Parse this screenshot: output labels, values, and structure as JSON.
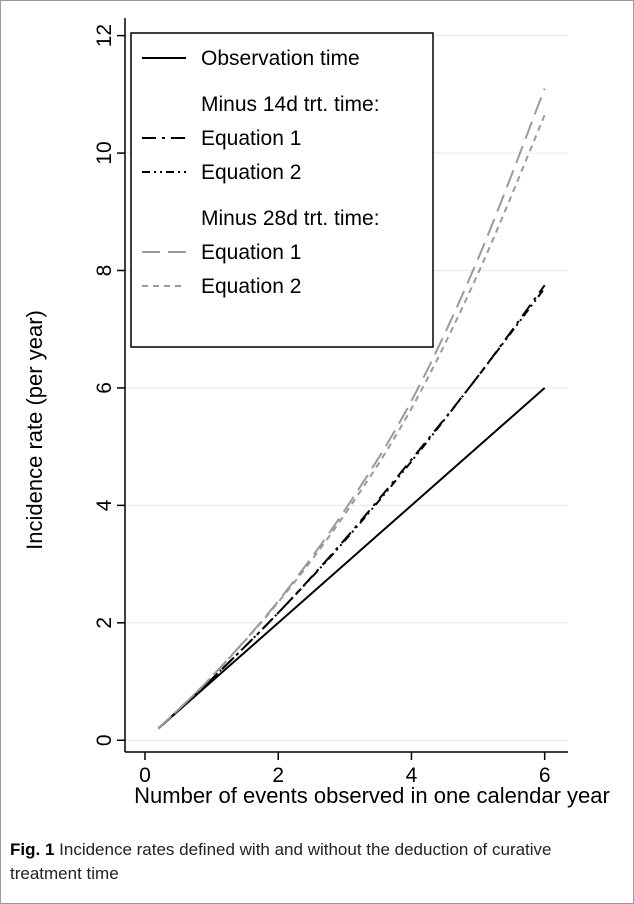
{
  "chart_data": {
    "type": "line",
    "title": "",
    "xlabel": "Number of events observed in one calendar year",
    "ylabel": "Incidence rate (per year)",
    "xlim": [
      -0.3,
      6.35
    ],
    "ylim": [
      -0.2,
      12.3
    ],
    "xticks": [
      0,
      2,
      4,
      6
    ],
    "yticks": [
      0,
      2,
      4,
      6,
      8,
      10,
      12
    ],
    "grid": "horizontal",
    "legend_position": "top-left",
    "x": [
      0.2,
      1,
      2,
      3,
      4,
      5,
      6
    ],
    "series": [
      {
        "name": "Observation time",
        "group": "",
        "values": [
          0.2,
          1.0,
          2.0,
          3.0,
          4.0,
          5.0,
          6.0
        ],
        "color": "#000000",
        "dash": "solid"
      },
      {
        "name": "Equation 1",
        "group": "Minus 14d trt. time:",
        "values": [
          0.2,
          1.04,
          2.17,
          3.42,
          4.78,
          6.2,
          7.75
        ],
        "color": "#000000",
        "dash": "dashdot"
      },
      {
        "name": "Equation 2",
        "group": "Minus 14d trt. time:",
        "values": [
          0.2,
          1.04,
          2.17,
          3.4,
          4.75,
          6.2,
          7.7
        ],
        "color": "#000000",
        "dashdotdot": true,
        "dash": "dashdotdot"
      },
      {
        "name": "Equation 1",
        "group": "Minus 28d trt. time:",
        "values": [
          0.2,
          1.08,
          2.37,
          3.92,
          5.78,
          8.2,
          11.1
        ],
        "color": "#9a9a9a",
        "dash": "longdash"
      },
      {
        "name": "Equation 2",
        "group": "Minus 28d trt. time:",
        "values": [
          0.2,
          1.08,
          2.35,
          3.85,
          5.65,
          7.95,
          10.65
        ],
        "color": "#9a9a9a",
        "dash": "shortdash"
      }
    ]
  },
  "caption": {
    "label": "Fig. 1",
    "text": "Incidence rates defined with and without the deduction of curative treatment time"
  }
}
